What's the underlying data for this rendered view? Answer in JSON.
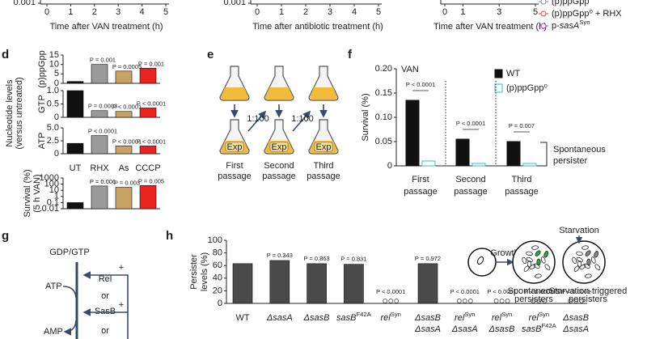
{
  "letters": {
    "d": "d",
    "e": "e",
    "f": "f",
    "g": "g",
    "h": "h"
  },
  "chart_data": [
    {
      "type": "line",
      "x_label": "Time after VAN treatment (h)",
      "xlim": [
        0,
        5
      ],
      "xticks": [
        0,
        1,
        2,
        3,
        4,
        5
      ],
      "yticks": [
        {
          "value": 0.001,
          "label": "0.001"
        }
      ]
    },
    {
      "type": "line",
      "x_label": "Time after antibiotic treatment (h)",
      "xlim": [
        0,
        5
      ],
      "xticks": [
        0,
        1,
        2,
        3,
        4,
        5
      ],
      "yticks": [
        {
          "value": 0.001,
          "label": "0.001"
        }
      ]
    },
    {
      "type": "line",
      "x_label": "Time after VAN treatment (h)",
      "xlim": [
        0,
        5
      ],
      "xticks": [
        0,
        1,
        3,
        5
      ],
      "series": [
        {
          "name": "(p)ppGpp",
          "color": "#8a8a8a"
        },
        {
          "name": "(p)ppGpp⁰ + RHX",
          "color": "#e0403a"
        },
        {
          "name": [
            "p-",
            {
              "i": "sasA"
            },
            {
              "sup": "Syn"
            }
          ],
          "color": "#b040d0"
        }
      ]
    },
    {
      "type": "bar",
      "group_label": [
        "Nucleotide levels",
        "(versus untreated)"
      ],
      "y_label": "(p)ppGpp",
      "ylim": [
        0,
        15
      ],
      "yticks": [
        0,
        5,
        10,
        15
      ],
      "values": [
        1,
        10,
        6.5,
        8
      ],
      "colors": [
        "#111111",
        "#9a9a9a",
        "#c8a165",
        "#e8231e"
      ],
      "annotations": [
        null,
        "P = 0.001",
        "P = 0.0005",
        "P = 0.001"
      ]
    },
    {
      "type": "bar",
      "y_label": "GTP",
      "ylim": [
        0,
        1
      ],
      "yticks": [
        0,
        0.5,
        {
          "value": 1,
          "label": "1.0"
        }
      ],
      "values": [
        1,
        0.25,
        0.22,
        0.35
      ],
      "colors": [
        "#111111",
        "#9a9a9a",
        "#c8a165",
        "#e8231e"
      ],
      "annotations": [
        null,
        "P = 0.0003",
        "P < 0.0001",
        "P < 0.0001"
      ]
    },
    {
      "type": "bar",
      "y_label": "ATP",
      "ylim": [
        0,
        5
      ],
      "yticks": [
        0,
        2.5,
        {
          "value": 5,
          "label": "5.0"
        }
      ],
      "values": [
        2,
        3.5,
        1.5,
        1.5
      ],
      "colors": [
        "#111111",
        "#9a9a9a",
        "#c8a165",
        "#e8231e"
      ],
      "annotations": [
        null,
        "P < 0.0001",
        "P < 0.0001",
        "P < 0.0001"
      ],
      "categories": [
        "UT",
        "RHX",
        "As",
        "CCCP"
      ]
    },
    {
      "type": "bar",
      "log": true,
      "y_label": [
        "Survival (%)",
        "(5 h VAN)"
      ],
      "ylim": [
        0.01,
        1000
      ],
      "yticks": [
        0.01,
        0.1,
        1,
        10,
        100,
        1000
      ],
      "values": [
        0.1,
        50,
        30,
        60
      ],
      "colors": [
        "#111111",
        "#9a9a9a",
        "#c8a165",
        "#e8231e"
      ],
      "annotations": [
        null,
        "P = 0.006",
        "P = 0.003",
        "P = 0.005"
      ]
    },
    {
      "type": "grouped_bar",
      "title": "VAN",
      "y_label": "Survival (%)",
      "ylim": [
        0,
        0.2
      ],
      "yticks": [
        0,
        0.05,
        {
          "value": 0.1,
          "label": "0.10"
        },
        0.15,
        {
          "value": 0.2,
          "label": "0.20"
        }
      ],
      "categories": [
        [
          "First",
          "passage"
        ],
        [
          "Second",
          "passage"
        ],
        [
          "Third",
          "passage"
        ]
      ],
      "series": [
        {
          "name": "WT",
          "color": "#111111",
          "values": [
            0.135,
            0.055,
            0.05
          ]
        },
        {
          "name": "(p)ppGpp⁰",
          "color": "#ffffff",
          "edge": "#3fb8c8",
          "values": [
            0.01,
            0.005,
            0.005
          ]
        }
      ],
      "annotations": [
        "P < 0.0001",
        "P < 0.0001",
        "P = 0.007"
      ],
      "bracket_label": [
        "Spontaneous",
        "persister"
      ]
    },
    {
      "type": "bar",
      "y_label": [
        "Persister",
        "levels (%)"
      ],
      "ylim": [
        0,
        100
      ],
      "yticks": [
        0,
        20,
        40,
        60,
        80,
        100
      ],
      "color": "#4a4a4a",
      "categories": [
        [
          "WT"
        ],
        [
          [
            {
              "i": "ΔsasA"
            }
          ]
        ],
        [
          [
            {
              "i": "ΔsasB"
            }
          ]
        ],
        [
          [
            {
              "i": "sasB"
            },
            {
              "sup": "F42A"
            }
          ]
        ],
        [
          [
            {
              "i": "rel"
            },
            {
              "sup": "Syn"
            }
          ]
        ],
        [
          [
            {
              "i": "ΔsasB"
            }
          ],
          [
            {
              "i": "ΔsasA"
            }
          ]
        ],
        [
          [
            {
              "i": "rel"
            },
            {
              "sup": "Syn"
            }
          ],
          [
            {
              "i": "ΔsasA"
            }
          ]
        ],
        [
          [
            {
              "i": "rel"
            },
            {
              "sup": "Syn"
            }
          ],
          [
            {
              "i": "ΔsasB"
            }
          ]
        ],
        [
          [
            {
              "i": "rel"
            },
            {
              "sup": "Syn"
            }
          ],
          [
            {
              "i": "sasB"
            },
            {
              "sup": "F42A"
            }
          ]
        ],
        [
          [
            {
              "i": "ΔsasB"
            }
          ],
          [
            {
              "i": "ΔsasA"
            }
          ]
        ]
      ],
      "values": [
        63,
        68,
        63,
        62,
        0,
        63,
        0,
        0,
        0,
        0
      ],
      "annotations": [
        null,
        "P = 0.343",
        "P = 0.863",
        "P = 0.831",
        "P < 0.0001",
        "P = 0.972",
        "P < 0.0001",
        "P < 0.0001",
        "P < 0.0001",
        "P < 0.0001"
      ]
    }
  ],
  "diagram_e": {
    "dilutions": [
      "1:100",
      "1:100"
    ],
    "flask_label": [
      "Exp",
      "Exp",
      "Exp"
    ],
    "passages": [
      [
        "First",
        "passage"
      ],
      [
        "Second",
        "passage"
      ],
      [
        "Third",
        "passage"
      ]
    ]
  },
  "diagram_g": {
    "substrate": "GDP/GTP",
    "donor": "ATP",
    "product": "AMP",
    "enzymes": [
      "Rel",
      "or",
      "SasB",
      "or"
    ],
    "signs": [
      "+",
      "+"
    ]
  },
  "diagram_h": {
    "growth": "Growth",
    "starvation": "Starvation",
    "spontaneous": [
      "Spontaneous",
      "persisters"
    ],
    "triggered": [
      "Starvation-triggered",
      "persisters"
    ]
  }
}
